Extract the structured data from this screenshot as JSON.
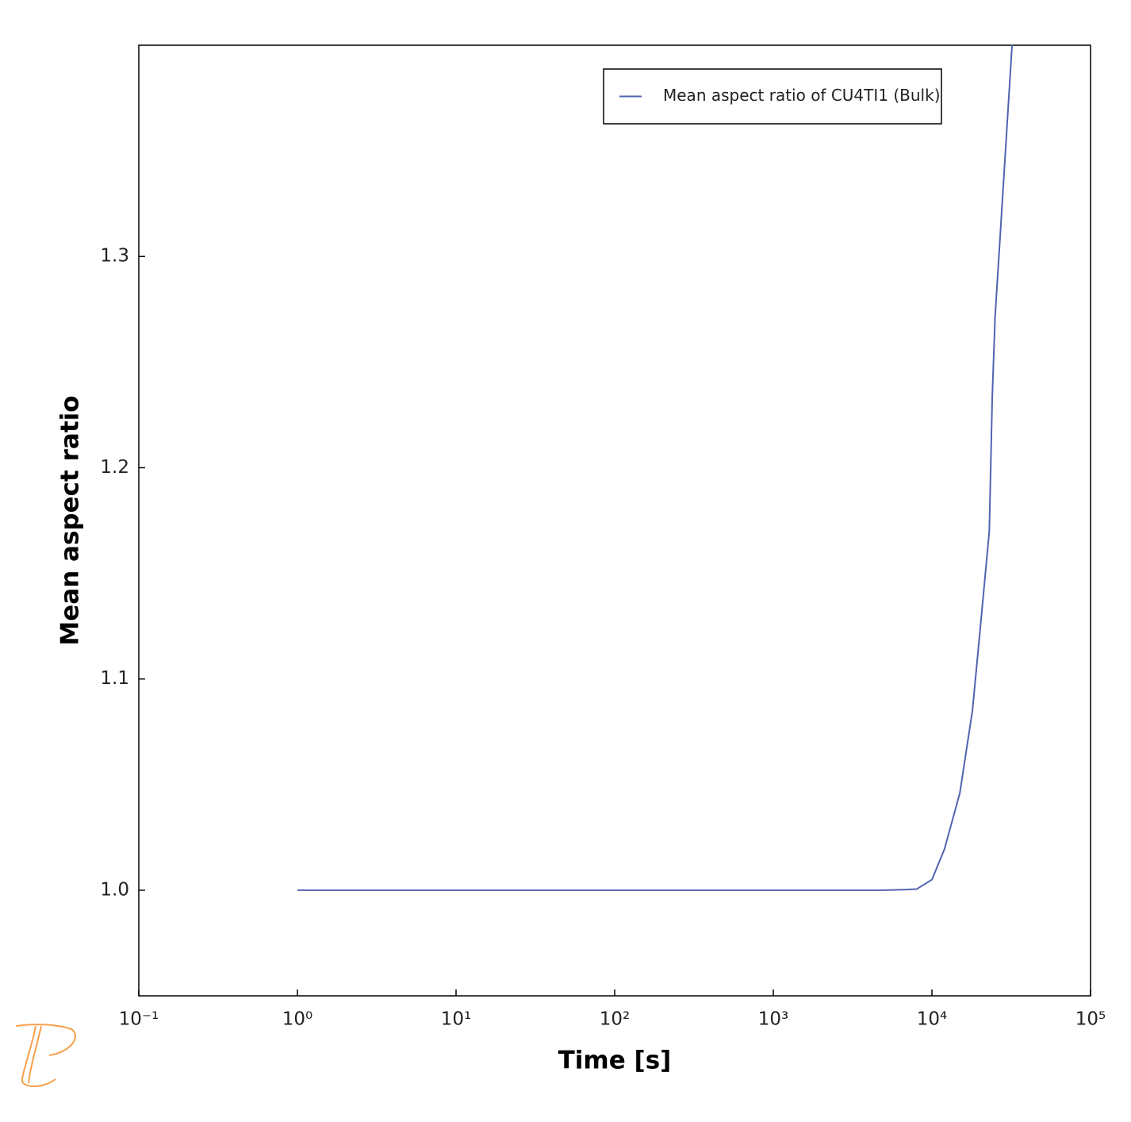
{
  "chart_data": {
    "type": "line",
    "x_label": "Time [s]",
    "y_label": "Mean aspect ratio",
    "x_log": true,
    "xlim": [
      0.1,
      100000
    ],
    "ylim": [
      0.95,
      1.4
    ],
    "xticks": [
      {
        "value": 0.1,
        "label": "10⁻¹"
      },
      {
        "value": 1,
        "label": "10⁰"
      },
      {
        "value": 10,
        "label": "10¹"
      },
      {
        "value": 100,
        "label": "10²"
      },
      {
        "value": 1000,
        "label": "10³"
      },
      {
        "value": 10000,
        "label": "10⁴"
      },
      {
        "value": 100000,
        "label": "10⁵"
      }
    ],
    "yticks": [
      {
        "value": 1,
        "label": "1.0"
      },
      1.1,
      1.2,
      1.3
    ],
    "legend": "top-right",
    "x": [
      1,
      10,
      100,
      1000,
      5000,
      8000,
      10000,
      12000,
      15000,
      18000,
      20000,
      23000,
      24000,
      25000,
      28000,
      32000
    ],
    "series": [
      {
        "name": "Mean aspect ratio of CU4TI1 (Bulk)",
        "color": "#5263b0",
        "values": [
          1.0,
          1.0,
          1.0,
          1.0,
          1.0,
          1.0005,
          1.005,
          1.0195,
          1.046,
          1.085,
          1.121,
          1.17,
          1.233,
          1.271,
          1.33,
          1.4
        ]
      }
    ]
  }
}
